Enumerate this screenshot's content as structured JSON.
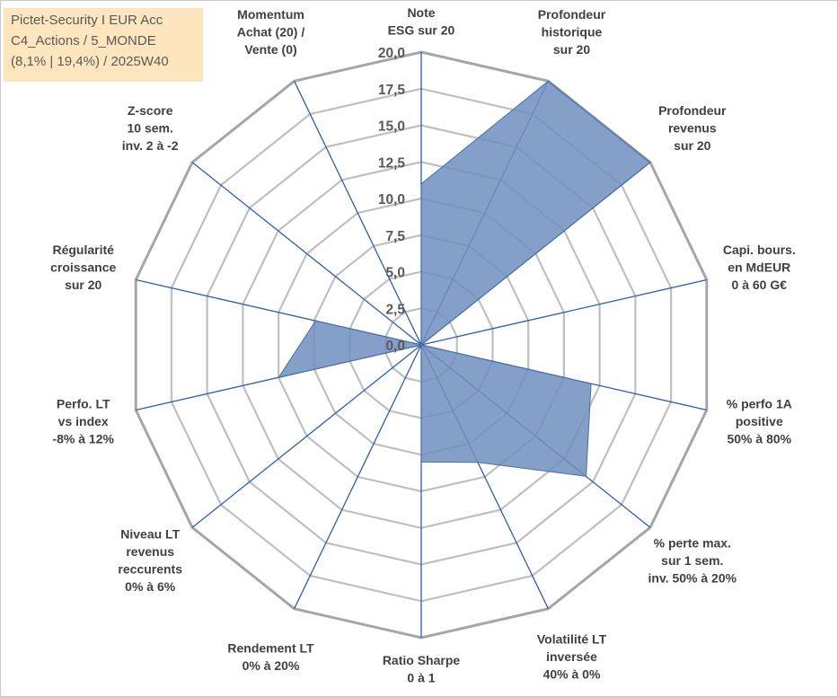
{
  "title_box": {
    "line1": "Pictet-Security I EUR Acc",
    "line2": "C4_Actions / 5_MONDE",
    "line3": "(8,1% | 19,4%) / 2025W40"
  },
  "chart_data": {
    "type": "radar",
    "title": "Pictet-Security I EUR Acc",
    "rlim": [
      0,
      20
    ],
    "rticks": [
      "0,0",
      "2,5",
      "5,0",
      "7,5",
      "10,0",
      "12,5",
      "15,0",
      "17,5",
      "20,0"
    ],
    "grid": true,
    "categories": [
      "Note ESG sur 20",
      "Profondeur historique sur 20",
      "Profondeur revenus sur 20",
      "Capi. bours. en MdEUR 0 à 60 G€",
      "% perfo 1A positive 50% à 80%",
      "% perte max. sur 1 sem. inv. 50% à 20%",
      "Volatilité LT inversée 40% à 0%",
      "Ratio Sharpe 0 à 1",
      "Rendement LT 0% à 20%",
      "Niveau LT revenus reccurents 0% à 6%",
      "Perfo. LT vs index -8% à 12%",
      "Régularité croissance sur 20",
      "Z-score 10 sem. inv. 2 à -2",
      "Momentum Achat (20) / Vente (0)"
    ],
    "category_lines": [
      [
        "Note",
        "ESG sur 20"
      ],
      [
        "Profondeur",
        "historique",
        "sur 20"
      ],
      [
        "Profondeur",
        "revenus",
        "sur 20"
      ],
      [
        "Capi. bours.",
        "en MdEUR",
        "0 à 60 G€"
      ],
      [
        "% perfo 1A",
        "positive",
        "50% à 80%"
      ],
      [
        "% perte max.",
        "sur 1 sem.",
        "inv. 50% à 20%"
      ],
      [
        "Volatilité LT",
        "inversée",
        "40% à 0%"
      ],
      [
        "Ratio Sharpe",
        "0 à 1"
      ],
      [
        "Rendement LT",
        "0% à 20%"
      ],
      [
        "Niveau LT",
        "revenus",
        "reccurents",
        "0% à 6%"
      ],
      [
        "Perfo. LT",
        "vs index",
        "-8% à 12%"
      ],
      [
        "Régularité",
        "croissance",
        "sur 20"
      ],
      [
        "Z-score",
        "10 sem.",
        "inv. 2 à -2"
      ],
      [
        "Momentum",
        "Achat (20) /",
        "Vente (0)"
      ]
    ],
    "values": [
      11.0,
      20.0,
      20.0,
      0.0,
      11.9,
      14.4,
      8.9,
      8.0,
      0.0,
      0.0,
      10.0,
      7.4,
      0.0,
      0.0
    ],
    "colors": {
      "fill": "#6e8fbf",
      "fill_opacity": 0.85,
      "outline": "#4a6fa5",
      "spokes": "#2f5db0",
      "grid": "#bfbfbf",
      "grid_outer": "#a6a6a6"
    }
  }
}
